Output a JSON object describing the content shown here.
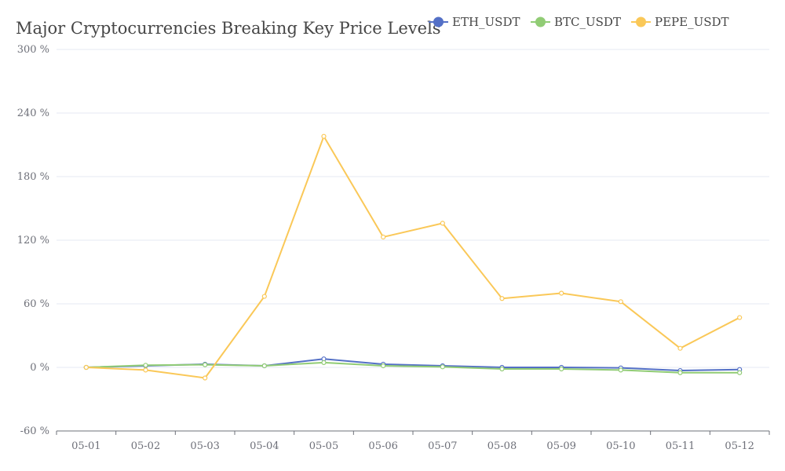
{
  "chart_data": {
    "type": "line",
    "title": "Major Cryptocurrencies Breaking Key Price Levels",
    "xlabel": "",
    "ylabel": "",
    "categories": [
      "05-01",
      "05-02",
      "05-03",
      "05-04",
      "05-05",
      "05-06",
      "05-07",
      "05-08",
      "05-09",
      "05-10",
      "05-11",
      "05-12"
    ],
    "yticks": [
      "300 %",
      "240 %",
      "180 %",
      "120 %",
      "60 %",
      "0 %",
      "-60 %"
    ],
    "ylim": [
      -60,
      300
    ],
    "grid": true,
    "legend_position": "top-right",
    "series": [
      {
        "name": "ETH_USDT",
        "color": "#5470c6",
        "values": [
          0,
          1.5,
          3,
          1.5,
          8,
          3,
          1.5,
          0,
          0,
          -0.5,
          -3,
          -2
        ]
      },
      {
        "name": "BTC_USDT",
        "color": "#91cc75",
        "values": [
          0,
          2,
          2.5,
          1.5,
          4.5,
          1.5,
          0.5,
          -1.5,
          -1.5,
          -2.5,
          -5,
          -5
        ]
      },
      {
        "name": "PEPE_USDT",
        "color": "#fac858",
        "values": [
          0,
          -2.5,
          -10,
          67,
          218,
          123,
          136,
          65,
          70,
          62,
          18,
          47
        ]
      }
    ]
  }
}
